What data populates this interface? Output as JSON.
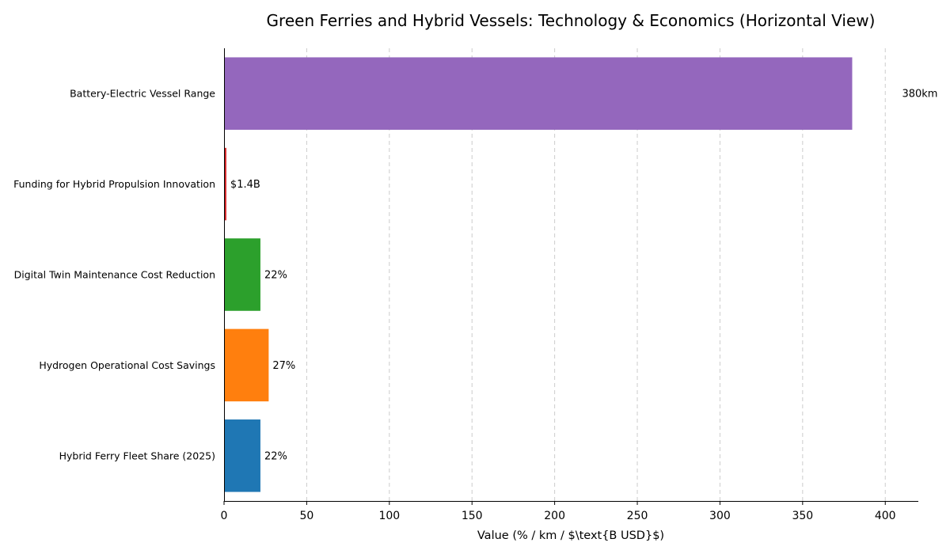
{
  "chart_data": {
    "type": "bar",
    "orientation": "horizontal",
    "title": "Green Ferries and Hybrid Vessels: Technology & Economics (Horizontal View)",
    "xlabel": "Value (% / km / $\\text{B USD}$)",
    "ylabel": "",
    "xlim": [
      0,
      420
    ],
    "xticks": [
      0,
      50,
      100,
      150,
      200,
      250,
      300,
      350,
      400
    ],
    "grid": "x-dashed",
    "categories": [
      "Battery-Electric Vessel Range",
      "Funding for Hybrid Propulsion Innovation",
      "Digital Twin Maintenance Cost Reduction",
      "Hydrogen Operational Cost Savings",
      "Hybrid Ferry Fleet Share (2025)"
    ],
    "values": [
      380,
      1.4,
      22,
      27,
      22
    ],
    "data_labels": [
      "380km",
      "$1.4B",
      "22%",
      "27%",
      "22%"
    ],
    "colors": [
      "#9467bd",
      "#d62728",
      "#2ca02c",
      "#ff7f0e",
      "#1f77b4"
    ]
  }
}
